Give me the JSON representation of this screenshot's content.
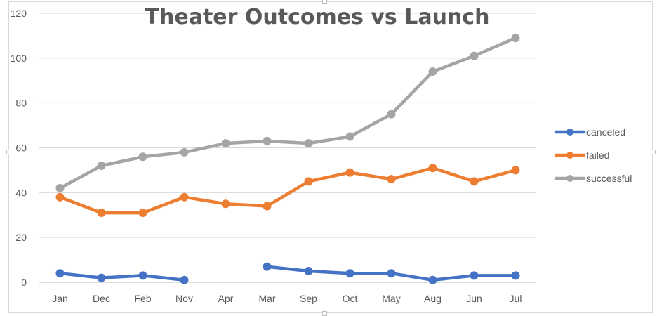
{
  "chart_data": {
    "type": "line",
    "title": "Theater Outcomes vs Launch",
    "xlabel": "",
    "ylabel": "",
    "categories": [
      "Jan",
      "Dec",
      "Feb",
      "Nov",
      "Apr",
      "Mar",
      "Sep",
      "Oct",
      "May",
      "Aug",
      "Jun",
      "Jul"
    ],
    "ylim": [
      0,
      120
    ],
    "yticks": [
      0,
      20,
      40,
      60,
      80,
      100,
      120
    ],
    "grid": true,
    "legend_position": "right",
    "series": [
      {
        "name": "canceled",
        "color": "#4472c4",
        "values": [
          4,
          2,
          3,
          1,
          null,
          7,
          5,
          4,
          4,
          1,
          3,
          3
        ]
      },
      {
        "name": "failed",
        "color": "#ed7d31",
        "values": [
          38,
          31,
          31,
          38,
          35,
          34,
          45,
          49,
          46,
          51,
          45,
          50
        ]
      },
      {
        "name": "successful",
        "color": "#a5a5a5",
        "values": [
          42,
          52,
          56,
          58,
          62,
          63,
          62,
          65,
          75,
          94,
          101,
          109
        ]
      }
    ]
  }
}
